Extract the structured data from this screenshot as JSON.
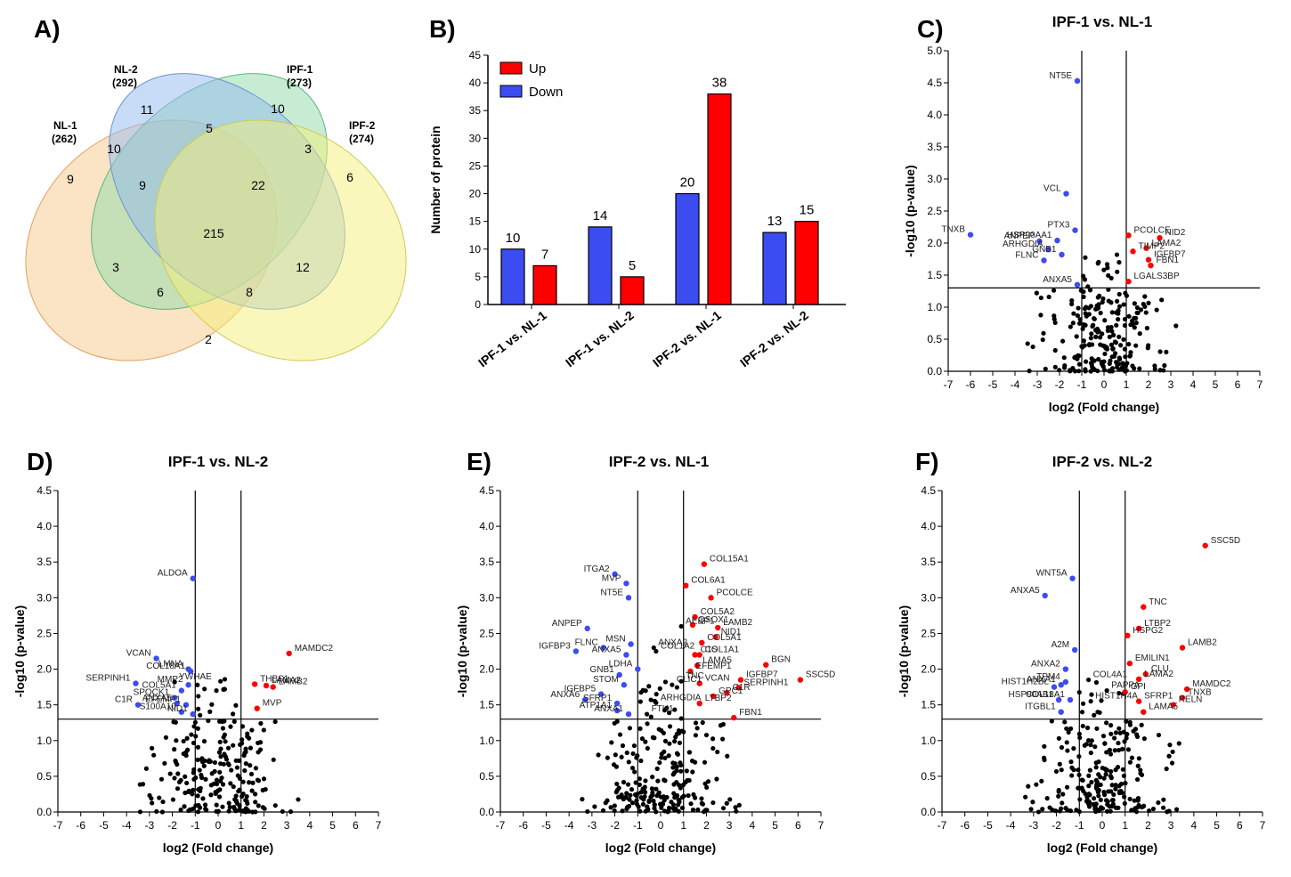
{
  "colors": {
    "up": "#ff0000",
    "down": "#3b4cf0",
    "ns": "#000000",
    "venn_nl1": "#f6c98a",
    "venn_nl2": "#8fd9a8",
    "venn_ipf1": "#93b9f0",
    "venn_ipf2": "#f3f07a"
  },
  "venn": {
    "panel_label": "A)",
    "sets": [
      {
        "name": "NL-1",
        "count": "(262)"
      },
      {
        "name": "NL-2",
        "count": "(292)"
      },
      {
        "name": "IPF-1",
        "count": "(273)"
      },
      {
        "name": "IPF-2",
        "count": "(274)"
      }
    ],
    "regions": [
      "11",
      "10",
      "5",
      "10",
      "3",
      "9",
      "9",
      "22",
      "6",
      "215",
      "3",
      "12",
      "6",
      "8",
      "2"
    ]
  },
  "chart_data": [
    {
      "type": "bar",
      "panel_label": "B)",
      "title": "",
      "categories": [
        "IPF-1 vs. NL-1",
        "IPF-1 vs. NL-2",
        "IPF-2 vs. NL-1",
        "IPF-2 vs. NL-2"
      ],
      "series": [
        {
          "name": "Down",
          "values": [
            10,
            14,
            20,
            13
          ]
        },
        {
          "name": "Up",
          "values": [
            7,
            5,
            38,
            15
          ]
        }
      ],
      "legend": [
        "Up",
        "Down"
      ],
      "xlabel": "",
      "ylabel": "Number of protein",
      "ylim": [
        0,
        45
      ],
      "yticks": [
        "0",
        "5",
        "10",
        "15",
        "20",
        "25",
        "30",
        "35",
        "40",
        "45"
      ]
    },
    {
      "type": "scatter",
      "panel_label": "C)",
      "title": "IPF-1 vs. NL-1",
      "xlabel": "log2 (Fold change)",
      "ylabel": "-log10 (p-value)",
      "xlim": [
        -7,
        7
      ],
      "ylim": [
        0,
        5
      ],
      "xticks": [
        "-7",
        "-6",
        "-5",
        "-4",
        "-3",
        "-2",
        "-1",
        "0",
        "1",
        "2",
        "3",
        "4",
        "5",
        "6",
        "7"
      ],
      "yticks": [
        "0.0",
        "0.5",
        "1.0",
        "1.5",
        "2.0",
        "2.5",
        "3.0",
        "3.5",
        "4.0",
        "4.5",
        "5.0"
      ],
      "thresholds": {
        "fc": 1,
        "p": 1.3
      },
      "labeled": [
        {
          "g": "NT5E",
          "x": -1.2,
          "y": 4.53,
          "c": "down"
        },
        {
          "g": "VCL",
          "x": -1.7,
          "y": 2.77,
          "c": "down"
        },
        {
          "g": "TNXB",
          "x": -6.0,
          "y": 2.13,
          "c": "down"
        },
        {
          "g": "PTX3",
          "x": -1.3,
          "y": 2.2,
          "c": "down"
        },
        {
          "g": "ANPEP",
          "x": -2.9,
          "y": 2.03,
          "c": "down"
        },
        {
          "g": "HSP90AA1",
          "x": -2.1,
          "y": 2.04,
          "c": "down"
        },
        {
          "g": "ARHGDIA",
          "x": -2.5,
          "y": 1.9,
          "c": "down"
        },
        {
          "g": "GNB1",
          "x": -1.9,
          "y": 1.82,
          "c": "down"
        },
        {
          "g": "FLNC",
          "x": -2.7,
          "y": 1.73,
          "c": "down"
        },
        {
          "g": "ANXA5",
          "x": -1.2,
          "y": 1.35,
          "c": "down"
        },
        {
          "g": "PCOLCE",
          "x": 1.1,
          "y": 2.12,
          "c": "up"
        },
        {
          "g": "NID2",
          "x": 2.5,
          "y": 2.08,
          "c": "up"
        },
        {
          "g": "LAMA2",
          "x": 1.9,
          "y": 1.92,
          "c": "up"
        },
        {
          "g": "TIMP2",
          "x": 1.3,
          "y": 1.87,
          "c": "up"
        },
        {
          "g": "IGFBP7",
          "x": 2.0,
          "y": 1.74,
          "c": "up"
        },
        {
          "g": "FBN1",
          "x": 2.1,
          "y": 1.65,
          "c": "up"
        },
        {
          "g": "LGALS3BP",
          "x": 1.1,
          "y": 1.4,
          "c": "up"
        }
      ],
      "seed": 11
    },
    {
      "type": "scatter",
      "panel_label": "D)",
      "title": "IPF-1 vs. NL-2",
      "xlabel": "log2 (Fold change)",
      "ylabel": "-log10 (p-value)",
      "xlim": [
        -7,
        7
      ],
      "ylim": [
        0,
        4.5
      ],
      "xticks": [
        "-7",
        "-6",
        "-5",
        "-4",
        "-3",
        "-2",
        "-1",
        "0",
        "1",
        "2",
        "3",
        "4",
        "5",
        "6",
        "7"
      ],
      "yticks": [
        "0.0",
        "0.5",
        "1.0",
        "1.5",
        "2.0",
        "2.5",
        "3.0",
        "3.5",
        "4.0",
        "4.5"
      ],
      "thresholds": {
        "fc": 1,
        "p": 1.3
      },
      "labeled": [
        {
          "g": "ALDOA",
          "x": -1.1,
          "y": 3.27,
          "c": "down"
        },
        {
          "g": "VCAN",
          "x": -2.7,
          "y": 2.15,
          "c": "down"
        },
        {
          "g": "LMNA",
          "x": -1.3,
          "y": 2.0,
          "c": "down"
        },
        {
          "g": "COL18A1",
          "x": -1.2,
          "y": 1.97,
          "c": "down"
        },
        {
          "g": "SERPINH1",
          "x": -3.6,
          "y": 1.8,
          "c": "down"
        },
        {
          "g": "MMP2",
          "x": -1.3,
          "y": 1.78,
          "c": "down"
        },
        {
          "g": "COL5A1",
          "x": -1.6,
          "y": 1.7,
          "c": "down"
        },
        {
          "g": "SPOCK1",
          "x": -1.9,
          "y": 1.6,
          "c": "down"
        },
        {
          "g": "ANXA5",
          "x": -1.8,
          "y": 1.52,
          "c": "down"
        },
        {
          "g": "C1R",
          "x": -3.5,
          "y": 1.5,
          "c": "down"
        },
        {
          "g": "EFEMP1",
          "x": -1.4,
          "y": 1.5,
          "c": "down"
        },
        {
          "g": "S100A10",
          "x": -1.6,
          "y": 1.4,
          "c": "down"
        },
        {
          "g": "NID1",
          "x": -1.1,
          "y": 1.37,
          "c": "down"
        },
        {
          "g": "MAMDC2",
          "x": 3.1,
          "y": 2.22,
          "c": "up"
        },
        {
          "g": "THBS1",
          "x": 1.6,
          "y": 1.79,
          "c": "up"
        },
        {
          "g": "LAMA2",
          "x": 2.1,
          "y": 1.77,
          "c": "up"
        },
        {
          "g": "LAMB2",
          "x": 2.4,
          "y": 1.75,
          "c": "up"
        },
        {
          "g": "MVP",
          "x": 1.7,
          "y": 1.45,
          "c": "up"
        }
      ],
      "extra_labels": [
        {
          "g": "YWHAE",
          "x": -1.9,
          "y": 1.82
        }
      ],
      "seed": 23
    },
    {
      "type": "scatter",
      "panel_label": "E)",
      "title": "IPF-2 vs. NL-1",
      "xlabel": "log2 (Fold change)",
      "ylabel": "-log10 (p-value)",
      "xlim": [
        -7,
        7
      ],
      "ylim": [
        0,
        4.5
      ],
      "xticks": [
        "-7",
        "-6",
        "-5",
        "-4",
        "-3",
        "-2",
        "-1",
        "0",
        "1",
        "2",
        "3",
        "4",
        "5",
        "6",
        "7"
      ],
      "yticks": [
        "0.0",
        "0.5",
        "1.0",
        "1.5",
        "2.0",
        "2.5",
        "3.0",
        "3.5",
        "4.0",
        "4.5"
      ],
      "thresholds": {
        "fc": 1,
        "p": 1.3
      },
      "labeled": [
        {
          "g": "ITGA2",
          "x": -2.0,
          "y": 3.33,
          "c": "down"
        },
        {
          "g": "MVP",
          "x": -1.5,
          "y": 3.2,
          "c": "down"
        },
        {
          "g": "NT5E",
          "x": -1.4,
          "y": 3.0,
          "c": "down"
        },
        {
          "g": "ANPEP",
          "x": -3.2,
          "y": 2.57,
          "c": "down"
        },
        {
          "g": "MSN",
          "x": -1.3,
          "y": 2.35,
          "c": "down"
        },
        {
          "g": "FLNC",
          "x": -2.5,
          "y": 2.3,
          "c": "down"
        },
        {
          "g": "IGFBP3",
          "x": -3.7,
          "y": 2.25,
          "c": "down"
        },
        {
          "g": "ANXA5",
          "x": -1.5,
          "y": 2.2,
          "c": "down"
        },
        {
          "g": "LDHA",
          "x": -1.0,
          "y": 2.0,
          "c": "down"
        },
        {
          "g": "GNB1",
          "x": -1.8,
          "y": 1.92,
          "c": "down"
        },
        {
          "g": "STOM",
          "x": -1.6,
          "y": 1.78,
          "c": "down"
        },
        {
          "g": "IGFBP5",
          "x": -2.6,
          "y": 1.65,
          "c": "down"
        },
        {
          "g": "ANXA6",
          "x": -3.3,
          "y": 1.57,
          "c": "down"
        },
        {
          "g": "SFRP1",
          "x": -1.9,
          "y": 1.52,
          "c": "down"
        },
        {
          "g": "ATP1A1",
          "x": -1.9,
          "y": 1.42,
          "c": "down"
        },
        {
          "g": "ANXA1",
          "x": -1.4,
          "y": 1.37,
          "c": "down"
        },
        {
          "g": "COL15A1",
          "x": 1.9,
          "y": 3.47,
          "c": "up"
        },
        {
          "g": "COL6A1",
          "x": 1.1,
          "y": 3.17,
          "c": "up"
        },
        {
          "g": "PCOLCE",
          "x": 2.2,
          "y": 3.0,
          "c": "up"
        },
        {
          "g": "COL5A2",
          "x": 1.5,
          "y": 2.73,
          "c": "up"
        },
        {
          "g": "QSOX1",
          "x": 1.4,
          "y": 2.62,
          "c": "up"
        },
        {
          "g": "LAMB2",
          "x": 2.5,
          "y": 2.58,
          "c": "up"
        },
        {
          "g": "NID1",
          "x": 2.4,
          "y": 2.45,
          "c": "up"
        },
        {
          "g": "COL5A1",
          "x": 1.8,
          "y": 2.37,
          "c": "up"
        },
        {
          "g": "COL1A1",
          "x": 1.7,
          "y": 2.2,
          "c": "up"
        },
        {
          "g": "C1S",
          "x": 1.5,
          "y": 2.2,
          "c": "up"
        },
        {
          "g": "LAMA5",
          "x": 1.6,
          "y": 2.05,
          "c": "up"
        },
        {
          "g": "BGN",
          "x": 4.6,
          "y": 2.06,
          "c": "up"
        },
        {
          "g": "EFEMP1",
          "x": 1.3,
          "y": 1.97,
          "c": "up"
        },
        {
          "g": "IGFBP7",
          "x": 3.5,
          "y": 1.85,
          "c": "up"
        },
        {
          "g": "SSC5D",
          "x": 6.1,
          "y": 1.85,
          "c": "up"
        },
        {
          "g": "VCAN",
          "x": 1.7,
          "y": 1.8,
          "c": "up"
        },
        {
          "g": "SERPINH1",
          "x": 3.4,
          "y": 1.74,
          "c": "up"
        },
        {
          "g": "C1R",
          "x": 2.9,
          "y": 1.67,
          "c": "up"
        },
        {
          "g": "GPC1",
          "x": 2.3,
          "y": 1.62,
          "c": "up"
        },
        {
          "g": "LTBP2",
          "x": 1.7,
          "y": 1.52,
          "c": "up"
        },
        {
          "g": "FBN1",
          "x": 3.2,
          "y": 1.32,
          "c": "up"
        }
      ],
      "extra_labels": [
        {
          "g": "AEBP1",
          "x": 0.9,
          "y": 2.6
        },
        {
          "g": "ANXA2",
          "x": -0.3,
          "y": 2.3
        },
        {
          "g": "COL1A2",
          "x": -0.2,
          "y": 2.25
        },
        {
          "g": "TNC",
          "x": 0.9,
          "y": 1.83
        },
        {
          "g": "CLIC1",
          "x": 0.5,
          "y": 1.78
        },
        {
          "g": "ARHGDIA",
          "x": -0.2,
          "y": 1.53
        },
        {
          "g": "FTH1",
          "x": -0.6,
          "y": 1.37
        }
      ],
      "seed": 37
    },
    {
      "type": "scatter",
      "panel_label": "F)",
      "title": "IPF-2 vs. NL-2",
      "xlabel": "log2 (Fold change)",
      "ylabel": "-log10 (p-value)",
      "xlim": [
        -7,
        7
      ],
      "ylim": [
        0,
        4.5
      ],
      "xticks": [
        "-7",
        "-6",
        "-5",
        "-4",
        "-3",
        "-2",
        "-1",
        "0",
        "1",
        "2",
        "3",
        "4",
        "5",
        "6",
        "7"
      ],
      "yticks": [
        "0.0",
        "0.5",
        "1.0",
        "1.5",
        "2.0",
        "2.5",
        "3.0",
        "3.5",
        "4.0",
        "4.5"
      ],
      "thresholds": {
        "fc": 1,
        "p": 1.3
      },
      "labeled": [
        {
          "g": "WNT5A",
          "x": -1.3,
          "y": 3.27,
          "c": "down"
        },
        {
          "g": "ANXA5",
          "x": -2.5,
          "y": 3.03,
          "c": "down"
        },
        {
          "g": "A2M",
          "x": -1.2,
          "y": 2.27,
          "c": "down"
        },
        {
          "g": "ANXA2",
          "x": -1.6,
          "y": 2.0,
          "c": "down"
        },
        {
          "g": "TPM4",
          "x": -1.6,
          "y": 1.82,
          "c": "down"
        },
        {
          "g": "ANXA1",
          "x": -1.8,
          "y": 1.78,
          "c": "down"
        },
        {
          "g": "HIST1H2BL",
          "x": -2.1,
          "y": 1.75,
          "c": "down"
        },
        {
          "g": "COL18A1",
          "x": -1.4,
          "y": 1.57,
          "c": "down"
        },
        {
          "g": "HSP90AB1",
          "x": -1.9,
          "y": 1.57,
          "c": "down"
        },
        {
          "g": "ITGBL1",
          "x": -1.8,
          "y": 1.4,
          "c": "down"
        },
        {
          "g": "SSC5D",
          "x": 4.5,
          "y": 3.73,
          "c": "up"
        },
        {
          "g": "TNC",
          "x": 1.8,
          "y": 2.87,
          "c": "up"
        },
        {
          "g": "LTBP2",
          "x": 1.6,
          "y": 2.57,
          "c": "up"
        },
        {
          "g": "HSPG2",
          "x": 1.1,
          "y": 2.47,
          "c": "up"
        },
        {
          "g": "LAMB2",
          "x": 3.5,
          "y": 2.3,
          "c": "up"
        },
        {
          "g": "EMILIN1",
          "x": 1.2,
          "y": 2.08,
          "c": "up"
        },
        {
          "g": "CLU",
          "x": 1.9,
          "y": 1.93,
          "c": "up"
        },
        {
          "g": "MAMDC2",
          "x": 3.7,
          "y": 1.72,
          "c": "up"
        },
        {
          "g": "LAMA2",
          "x": 1.6,
          "y": 1.86,
          "c": "up"
        },
        {
          "g": "GPI",
          "x": 1.0,
          "y": 1.68,
          "c": "up"
        },
        {
          "g": "TNXB",
          "x": 3.5,
          "y": 1.6,
          "c": "up"
        },
        {
          "g": "RELN",
          "x": 3.1,
          "y": 1.5,
          "c": "up"
        },
        {
          "g": "SFRP1",
          "x": 1.6,
          "y": 1.55,
          "c": "up"
        },
        {
          "g": "LAMA5",
          "x": 1.8,
          "y": 1.4,
          "c": "up"
        }
      ],
      "extra_labels": [
        {
          "g": "COL4A1",
          "x": -0.6,
          "y": 1.85
        },
        {
          "g": "PAPPA",
          "x": 0.2,
          "y": 1.7
        },
        {
          "g": "HIST1H4A",
          "x": -0.5,
          "y": 1.55
        }
      ],
      "seed": 51
    }
  ]
}
